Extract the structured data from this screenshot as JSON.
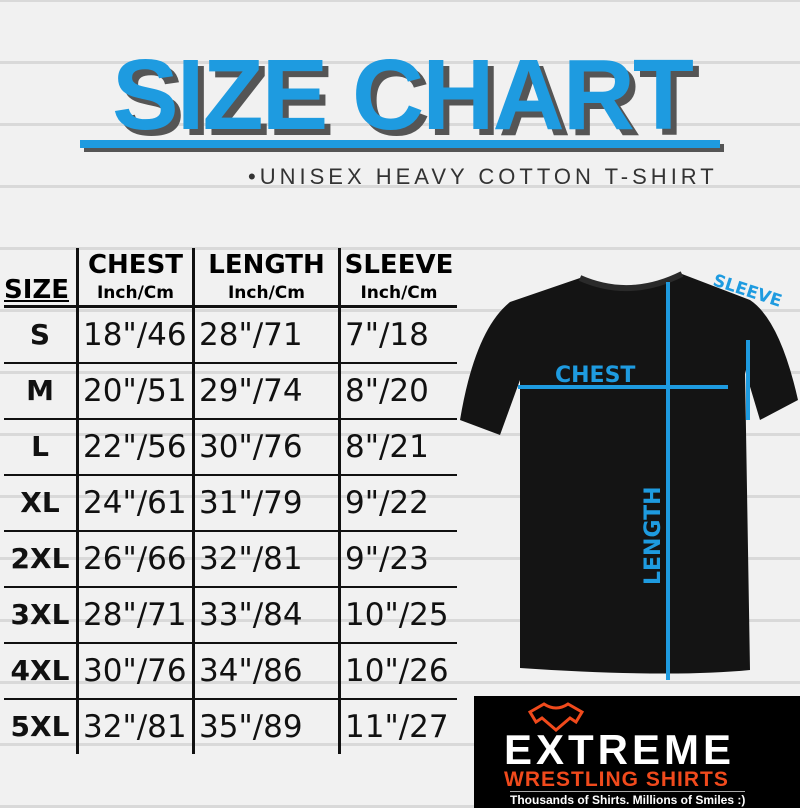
{
  "title": "SIZE CHART",
  "subtitle": "•UNISEX HEAVY COTTON T-SHIRT",
  "accent_color": "#1e9be0",
  "table": {
    "size_header": "SIZE",
    "columns": [
      {
        "label": "CHEST",
        "unit": "Inch/Cm"
      },
      {
        "label": "LENGTH",
        "unit": "Inch/Cm"
      },
      {
        "label": "SLEEVE",
        "unit": "Inch/Cm"
      }
    ],
    "rows": [
      {
        "size": "S",
        "chest": "18\"/46",
        "length": "28\"/71",
        "sleeve": "7\"/18"
      },
      {
        "size": "M",
        "chest": "20\"/51",
        "length": "29\"/74",
        "sleeve": "8\"/20"
      },
      {
        "size": "L",
        "chest": "22\"/56",
        "length": "30\"/76",
        "sleeve": "8\"/21"
      },
      {
        "size": "XL",
        "chest": "24\"/61",
        "length": "31\"/79",
        "sleeve": "9\"/22"
      },
      {
        "size": "2XL",
        "chest": "26\"/66",
        "length": "32\"/81",
        "sleeve": "9\"/23"
      },
      {
        "size": "3XL",
        "chest": "28\"/71",
        "length": "33\"/84",
        "sleeve": "10\"/25"
      },
      {
        "size": "4XL",
        "chest": "30\"/76",
        "length": "34\"/86",
        "sleeve": "10\"/26"
      },
      {
        "size": "5XL",
        "chest": "32\"/81",
        "length": "35\"/89",
        "sleeve": "11\"/27"
      }
    ]
  },
  "diagram": {
    "chest": "CHEST",
    "length": "LENGTH",
    "sleeve": "SLEEVE"
  },
  "logo": {
    "line1": "EXTREME",
    "line2": "WRESTLING SHIRTS",
    "tagline": "Thousands of Shirts. Millions of Smiles :)"
  }
}
